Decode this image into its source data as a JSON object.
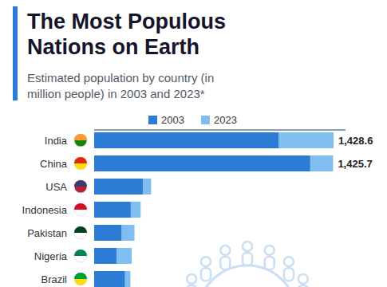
{
  "chart_data": {
    "type": "bar",
    "orientation": "horizontal",
    "title": "The Most Populous Nations on Earth",
    "subtitle": "Estimated population by country (in million people) in 2003 and 2023*",
    "categories": [
      "India",
      "China",
      "USA",
      "Indonesia",
      "Pakistan",
      "Nigeria",
      "Brazil"
    ],
    "series": [
      {
        "name": "2003",
        "color": "#2c7cd6",
        "values": [
          1100.0,
          1288.4,
          290.1,
          217.6,
          162.5,
          133.1,
          182.5
        ]
      },
      {
        "name": "2023",
        "color": "#80bdf0",
        "values": [
          1428.6,
          1425.7,
          339.9,
          277.5,
          240.5,
          223.8,
          216.4
        ],
        "value_labels": [
          "1,428.6",
          "1,425.7",
          null,
          null,
          null,
          null,
          null
        ]
      }
    ],
    "xlim": [
      0,
      1500
    ],
    "xticks": [],
    "tick_labels": false,
    "legend": "top",
    "data_labels": true,
    "grid": false
  }
}
